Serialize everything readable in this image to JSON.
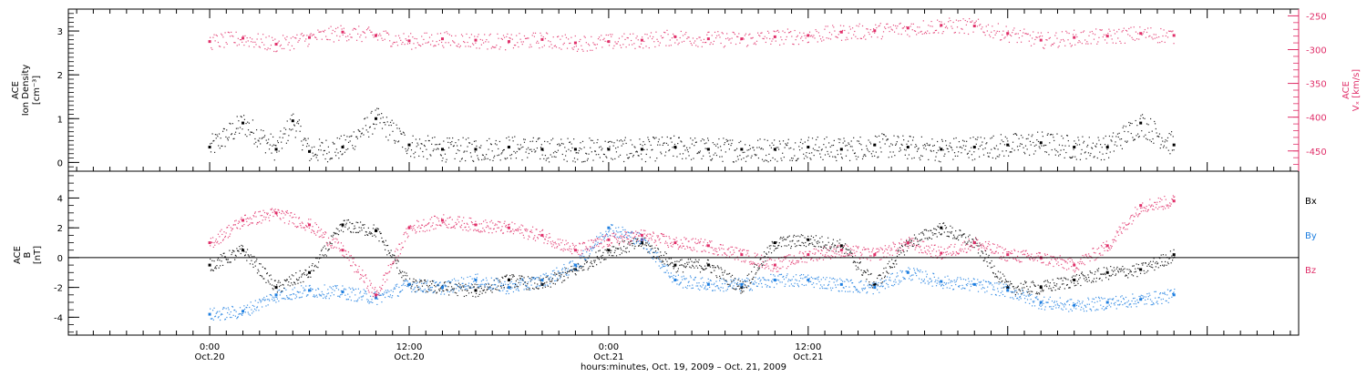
{
  "footer_label": "hours:minutes, Oct. 19, 2009 – Oct. 21, 2009",
  "chart_data": [
    {
      "type": "scatter",
      "panel": "top",
      "ylabel_left": [
        "ACE",
        "Ion Density",
        "[cm⁻³]"
      ],
      "ylabel_right": [
        "ACE",
        "Vₓ [km/s]"
      ],
      "y_left": {
        "min": -0.2,
        "max": 3.5,
        "ticks": [
          0,
          1,
          2,
          3
        ]
      },
      "y_right": {
        "min": -480,
        "max": -240,
        "ticks": [
          -250,
          -300,
          -350,
          -400,
          -450
        ]
      },
      "right_axis_color": "#e0306a",
      "grid": false,
      "series": [
        {
          "name": "Ion Density",
          "axis": "left",
          "color": "#000000",
          "t_hours": [
            0,
            4,
            8,
            10,
            12,
            16,
            20,
            24,
            28,
            32,
            36,
            40,
            44,
            48,
            52,
            56,
            60,
            64,
            68,
            72,
            76,
            80,
            84,
            88,
            92,
            96,
            100,
            104,
            108,
            112,
            116
          ],
          "values": [
            0.35,
            0.9,
            0.3,
            0.95,
            0.25,
            0.35,
            1.0,
            0.4,
            0.3,
            0.3,
            0.35,
            0.3,
            0.3,
            0.3,
            0.3,
            0.35,
            0.3,
            0.3,
            0.3,
            0.35,
            0.3,
            0.4,
            0.35,
            0.3,
            0.35,
            0.4,
            0.45,
            0.35,
            0.35,
            0.9,
            0.4
          ]
        },
        {
          "name": "Vx",
          "axis": "right",
          "color": "#e0306a",
          "t_hours": [
            0,
            4,
            8,
            12,
            16,
            20,
            24,
            28,
            32,
            36,
            40,
            44,
            48,
            52,
            56,
            60,
            64,
            68,
            72,
            76,
            80,
            84,
            88,
            92,
            96,
            100,
            104,
            108,
            112,
            116
          ],
          "values": [
            -288,
            -283,
            -292,
            -282,
            -274,
            -279,
            -287,
            -284,
            -286,
            -288,
            -285,
            -290,
            -288,
            -286,
            -281,
            -284,
            -284,
            -281,
            -279,
            -274,
            -272,
            -268,
            -264,
            -265,
            -276,
            -286,
            -282,
            -280,
            -276,
            -279
          ]
        }
      ]
    },
    {
      "type": "scatter",
      "panel": "bottom",
      "ylabel_left": [
        "ACE",
        "B",
        "[nT]"
      ],
      "y_left": {
        "min": -5.2,
        "max": 5.8,
        "ticks": [
          -4,
          -2,
          0,
          2,
          4
        ]
      },
      "zero_line": true,
      "grid": false,
      "series": [
        {
          "name": "Bx",
          "color": "#000000",
          "t_hours": [
            0,
            4,
            8,
            12,
            16,
            20,
            24,
            28,
            32,
            36,
            40,
            44,
            48,
            52,
            56,
            60,
            64,
            68,
            72,
            76,
            80,
            84,
            88,
            92,
            96,
            100,
            104,
            108,
            112,
            116
          ],
          "values": [
            -0.5,
            0.5,
            -2.0,
            -1.0,
            2.2,
            1.8,
            -1.8,
            -2.0,
            -2.2,
            -1.5,
            -1.8,
            -0.8,
            0.5,
            1.0,
            -0.5,
            -0.5,
            -2.0,
            1.0,
            1.2,
            0.8,
            -1.8,
            1.0,
            2.0,
            1.0,
            -2.0,
            -2.0,
            -1.5,
            -1.0,
            -0.8,
            0.2
          ]
        },
        {
          "name": "By",
          "color": "#1f7fe0",
          "t_hours": [
            0,
            4,
            8,
            12,
            16,
            20,
            24,
            28,
            32,
            36,
            40,
            44,
            48,
            52,
            56,
            60,
            64,
            68,
            72,
            76,
            80,
            84,
            88,
            92,
            96,
            100,
            104,
            108,
            112,
            116
          ],
          "values": [
            -3.8,
            -3.6,
            -2.5,
            -2.2,
            -2.3,
            -2.7,
            -1.8,
            -2.0,
            -1.5,
            -2.0,
            -1.5,
            -0.5,
            2.0,
            1.2,
            -1.5,
            -1.8,
            -1.8,
            -1.5,
            -1.5,
            -1.8,
            -2.0,
            -1.0,
            -1.6,
            -1.8,
            -2.2,
            -3.0,
            -3.2,
            -3.0,
            -2.8,
            -2.5
          ]
        },
        {
          "name": "Bz",
          "color": "#e0306a",
          "t_hours": [
            0,
            4,
            8,
            12,
            16,
            20,
            24,
            28,
            32,
            36,
            40,
            44,
            48,
            52,
            56,
            60,
            64,
            68,
            72,
            76,
            80,
            84,
            88,
            92,
            96,
            100,
            104,
            108,
            112,
            116
          ],
          "values": [
            1.0,
            2.5,
            3.0,
            2.2,
            0.5,
            -2.5,
            2.0,
            2.5,
            2.2,
            2.0,
            1.5,
            0.5,
            1.2,
            1.5,
            1.0,
            0.8,
            0.2,
            -0.5,
            0.2,
            0.5,
            0.2,
            1.0,
            0.3,
            1.0,
            0.2,
            0.0,
            -0.5,
            0.8,
            3.5,
            3.8
          ]
        }
      ]
    }
  ],
  "x_axis": {
    "range_hours": [
      -17,
      131
    ],
    "major_ticks": [
      {
        "t": 0,
        "time": "0:00",
        "date": "Oct.20"
      },
      {
        "t": 24,
        "time": "12:00",
        "date": "Oct.20"
      },
      {
        "t": 48,
        "time": "0:00",
        "date": "Oct.21"
      },
      {
        "t": 72,
        "time": "12:00",
        "date": "Oct.21"
      }
    ]
  }
}
